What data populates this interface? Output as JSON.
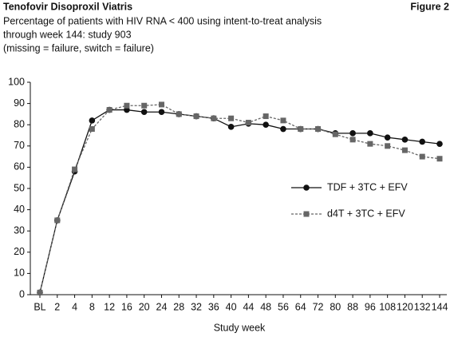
{
  "chart_data": {
    "type": "line",
    "title": "Tenofovir Disoproxil Viatris",
    "figure_label": "Figure 2",
    "subtitle": [
      "Percentage of patients with HIV RNA < 400 using intent-to-treat analysis",
      "through week 144: study 903",
      "(missing = failure, switch = failure)"
    ],
    "xlabel": "Study week",
    "categories": [
      "BL",
      "2",
      "4",
      "8",
      "12",
      "16",
      "20",
      "24",
      "28",
      "32",
      "36",
      "40",
      "44",
      "48",
      "56",
      "64",
      "72",
      "80",
      "88",
      "96",
      "108",
      "120",
      "132",
      "144"
    ],
    "series": [
      {
        "name": "TDF + 3TC + EFV",
        "color": "#111111",
        "marker": "circle",
        "dash": false,
        "values": [
          1,
          35,
          58,
          82,
          87,
          87,
          86,
          86,
          85,
          84,
          83,
          79,
          80.5,
          80,
          78,
          78,
          78,
          76,
          76,
          76,
          74,
          73,
          72,
          71
        ]
      },
      {
        "name": "d4T + 3TC + EFV",
        "color": "#666666",
        "marker": "square",
        "dash": true,
        "values": [
          1,
          35,
          59,
          78,
          87,
          89,
          89,
          89.5,
          85,
          84,
          83,
          83,
          81,
          84,
          82,
          78,
          78,
          75.5,
          73,
          71,
          70,
          68,
          65,
          64
        ]
      }
    ],
    "ylim": [
      0,
      100
    ],
    "yticks": [
      0,
      10,
      20,
      30,
      40,
      50,
      60,
      70,
      80,
      90,
      100
    ],
    "grid": false,
    "legend": "right"
  }
}
